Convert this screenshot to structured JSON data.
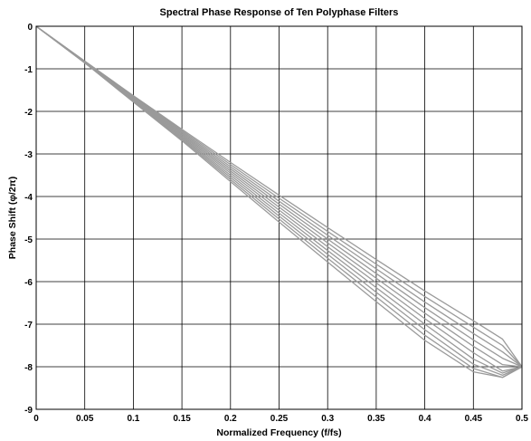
{
  "chart_data": {
    "type": "line",
    "title": "Spectral Phase Response of Ten Polyphase Filters",
    "xlabel": "Normalized Frequency (f/fs)",
    "ylabel": "Phase Shift (φ/2π)",
    "xlim": [
      0,
      0.5
    ],
    "ylim": [
      -9,
      0
    ],
    "xticks": [
      0,
      0.05,
      0.1,
      0.15,
      0.2,
      0.25,
      0.3,
      0.35,
      0.4,
      0.45,
      0.5
    ],
    "xtick_labels": [
      "0",
      "0.05",
      "0.1",
      "0.15",
      "0.2",
      "0.25",
      "0.3",
      "0.35",
      "0.4",
      "0.45",
      "0.5"
    ],
    "yticks": [
      0,
      -1,
      -2,
      -3,
      -4,
      -5,
      -6,
      -7,
      -8,
      -9
    ],
    "ytick_labels": [
      "0",
      "-1",
      "-2",
      "-3",
      "-4",
      "-5",
      "-6",
      "-7",
      "-8",
      "-9"
    ],
    "grid": true,
    "line_color": "#9a9a9a",
    "x": [
      0,
      0.05,
      0.1,
      0.15,
      0.2,
      0.25,
      0.3,
      0.35,
      0.4,
      0.45,
      0.48,
      0.5
    ],
    "series": [
      {
        "values": [
          0,
          -0.82,
          -1.63,
          -2.42,
          -3.2,
          -3.97,
          -4.73,
          -5.48,
          -6.22,
          -6.92,
          -7.35,
          -8.0
        ]
      },
      {
        "values": [
          0,
          -0.82,
          -1.64,
          -2.45,
          -3.25,
          -4.04,
          -4.82,
          -5.59,
          -6.35,
          -7.07,
          -7.5,
          -8.0
        ]
      },
      {
        "values": [
          0,
          -0.83,
          -1.65,
          -2.48,
          -3.3,
          -4.11,
          -4.91,
          -5.7,
          -6.48,
          -7.22,
          -7.65,
          -8.0
        ]
      },
      {
        "values": [
          0,
          -0.83,
          -1.67,
          -2.51,
          -3.35,
          -4.18,
          -5.0,
          -5.81,
          -6.61,
          -7.37,
          -7.8,
          -8.0
        ]
      },
      {
        "values": [
          0,
          -0.84,
          -1.68,
          -2.54,
          -3.4,
          -4.25,
          -5.09,
          -5.92,
          -6.74,
          -7.52,
          -7.95,
          -8.0
        ]
      },
      {
        "values": [
          0,
          -0.84,
          -1.7,
          -2.57,
          -3.45,
          -4.32,
          -5.18,
          -6.03,
          -6.87,
          -7.67,
          -8.1,
          -8.0
        ]
      },
      {
        "values": [
          0,
          -0.85,
          -1.72,
          -2.6,
          -3.5,
          -4.39,
          -5.27,
          -6.14,
          -7.0,
          -7.82,
          -8.15,
          -8.0
        ]
      },
      {
        "values": [
          0,
          -0.85,
          -1.74,
          -2.63,
          -3.55,
          -4.46,
          -5.36,
          -6.25,
          -7.13,
          -7.94,
          -8.2,
          -8.0
        ]
      },
      {
        "values": [
          0,
          -0.86,
          -1.76,
          -2.66,
          -3.6,
          -4.53,
          -5.45,
          -6.36,
          -7.26,
          -8.04,
          -8.25,
          -8.0
        ]
      },
      {
        "values": [
          0,
          -0.86,
          -1.78,
          -2.69,
          -3.65,
          -4.6,
          -5.54,
          -6.47,
          -7.38,
          -8.12,
          -8.25,
          -8.0
        ]
      }
    ]
  }
}
